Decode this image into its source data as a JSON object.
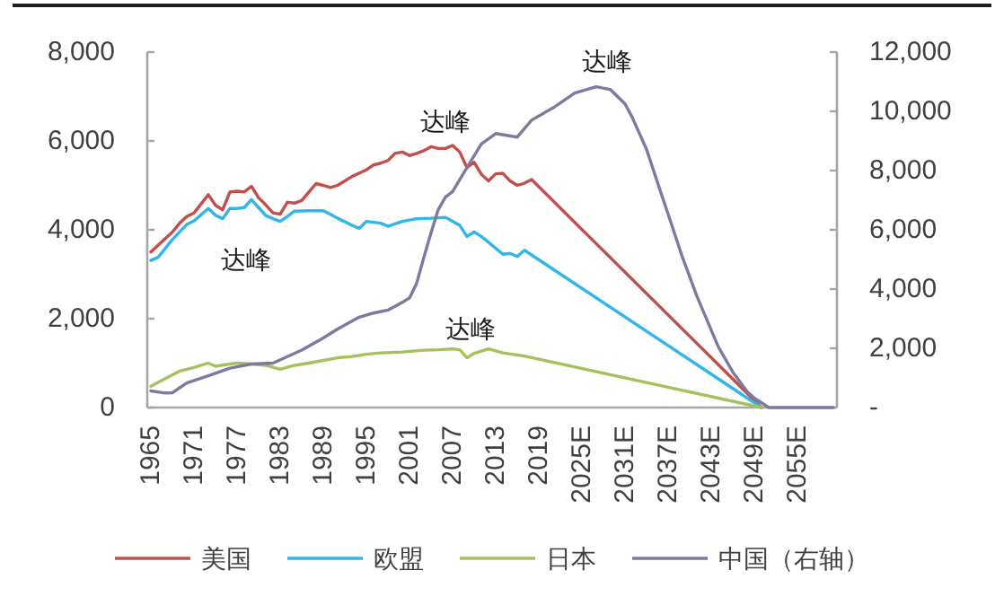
{
  "chart_data": {
    "type": "line",
    "xlim": [
      1964.5,
      2060.5
    ],
    "xticks": [
      1965,
      1971,
      1977,
      1983,
      1989,
      1995,
      2001,
      2007,
      2013,
      2019,
      {
        "value": 2025,
        "label": "2025E"
      },
      {
        "value": 2031,
        "label": "2031E"
      },
      {
        "value": 2037,
        "label": "2037E"
      },
      {
        "value": 2043,
        "label": "2043E"
      },
      {
        "value": 2049,
        "label": "2049E"
      },
      {
        "value": 2055,
        "label": "2055E"
      }
    ],
    "ylim": [
      0,
      8000
    ],
    "yticks": [
      0,
      {
        "value": 2000,
        "label": "2,000"
      },
      {
        "value": 4000,
        "label": "4,000"
      },
      {
        "value": 6000,
        "label": "6,000"
      },
      {
        "value": 8000,
        "label": "8,000"
      }
    ],
    "y2lim": [
      0,
      12000
    ],
    "y2ticks": [
      {
        "value": 0,
        "label": "-"
      },
      {
        "value": 2000,
        "label": "2,000"
      },
      {
        "value": 4000,
        "label": "4,000"
      },
      {
        "value": 6000,
        "label": "6,000"
      },
      {
        "value": 8000,
        "label": "8,000"
      },
      {
        "value": 10000,
        "label": "10,000"
      },
      {
        "value": 12000,
        "label": "12,000"
      }
    ],
    "series": [
      {
        "name": "美国",
        "color": "#c0504d",
        "x": [
          1965,
          1966,
          1968,
          1969,
          1970,
          1971,
          1973,
          1974,
          1975,
          1976,
          1977,
          1978,
          1979,
          1980,
          1981,
          1982,
          1983,
          1984,
          1985,
          1986,
          1987,
          1988,
          1989,
          1990,
          1991,
          1993,
          1995,
          1996,
          1997,
          1998,
          1999,
          2000,
          2001,
          2002,
          2003,
          2004,
          2005,
          2006,
          2007,
          2008,
          2009,
          2010,
          2011,
          2012,
          2013,
          2014,
          2015,
          2016,
          2017,
          2018,
          2050
        ],
        "values": [
          3500,
          3650,
          3950,
          4150,
          4300,
          4380,
          4790,
          4550,
          4450,
          4850,
          4870,
          4850,
          4980,
          4720,
          4560,
          4380,
          4350,
          4620,
          4600,
          4660,
          4850,
          5040,
          5000,
          4950,
          5000,
          5200,
          5350,
          5460,
          5500,
          5560,
          5720,
          5750,
          5670,
          5720,
          5780,
          5870,
          5830,
          5830,
          5900,
          5750,
          5400,
          5520,
          5250,
          5100,
          5260,
          5270,
          5100,
          5000,
          5050,
          5130,
          0
        ]
      },
      {
        "name": "欧盟",
        "color": "#31b7e6",
        "x": [
          1965,
          1966,
          1968,
          1970,
          1971,
          1973,
          1974,
          1975,
          1976,
          1977,
          1978,
          1979,
          1980,
          1981,
          1982,
          1983,
          1984,
          1985,
          1987,
          1989,
          1990,
          1991,
          1993,
          1994,
          1995,
          1997,
          1998,
          2000,
          2002,
          2004,
          2006,
          2007,
          2008,
          2009,
          2010,
          2011,
          2012,
          2014,
          2015,
          2016,
          2017,
          2050
        ],
        "values": [
          3310,
          3380,
          3780,
          4120,
          4200,
          4480,
          4330,
          4250,
          4480,
          4480,
          4500,
          4680,
          4500,
          4320,
          4250,
          4190,
          4300,
          4420,
          4430,
          4430,
          4350,
          4260,
          4100,
          4030,
          4190,
          4150,
          4080,
          4190,
          4250,
          4260,
          4280,
          4190,
          4100,
          3850,
          3950,
          3850,
          3720,
          3450,
          3470,
          3400,
          3540,
          0
        ]
      },
      {
        "name": "日本",
        "color": "#a5c05c",
        "x": [
          1965,
          1967,
          1969,
          1971,
          1973,
          1974,
          1976,
          1977,
          1979,
          1981,
          1983,
          1985,
          1987,
          1989,
          1991,
          1993,
          1995,
          1997,
          2000,
          2003,
          2005,
          2007,
          2008,
          2009,
          2010,
          2012,
          2014,
          2017,
          2050
        ],
        "values": [
          480,
          650,
          820,
          900,
          1000,
          930,
          980,
          1000,
          980,
          950,
          860,
          950,
          1000,
          1060,
          1120,
          1150,
          1200,
          1230,
          1250,
          1290,
          1300,
          1320,
          1300,
          1120,
          1220,
          1320,
          1230,
          1160,
          0
        ]
      },
      {
        "name": "中国（右轴）",
        "color": "#7e7a9e",
        "axis": "y2",
        "x": [
          1965,
          1967,
          1968,
          1970,
          1973,
          1976,
          1979,
          1982,
          1986,
          1989,
          1991,
          1994,
          1996,
          1998,
          2000,
          2001,
          2002,
          2003,
          2004,
          2005,
          2006,
          2007,
          2009,
          2011,
          2013,
          2016,
          2018,
          2021,
          2024,
          2027,
          2029,
          2031,
          2032,
          2034,
          2036,
          2037,
          2039,
          2041,
          2044,
          2046,
          2048,
          2049,
          2051,
          2060
        ],
        "values": [
          560,
          490,
          500,
          830,
          1070,
          1330,
          1470,
          1500,
          1940,
          2350,
          2650,
          3050,
          3190,
          3290,
          3550,
          3700,
          4200,
          5070,
          5900,
          6680,
          7100,
          7290,
          8100,
          8900,
          9250,
          9130,
          9700,
          10120,
          10620,
          10830,
          10730,
          10250,
          9800,
          8710,
          7250,
          6530,
          5070,
          3760,
          2040,
          1200,
          540,
          320,
          0,
          0
        ]
      }
    ],
    "annotations": [
      {
        "text": "达峰",
        "x": 2006,
        "y": 5830
      },
      {
        "text": "达峰",
        "x": 1978.25,
        "y": 4545
      },
      {
        "text": "达峰",
        "x": 2009.5,
        "y": 1170
      },
      {
        "text": "达峰",
        "x": 2028.5,
        "y": 7190
      }
    ],
    "legend": "bottom"
  }
}
